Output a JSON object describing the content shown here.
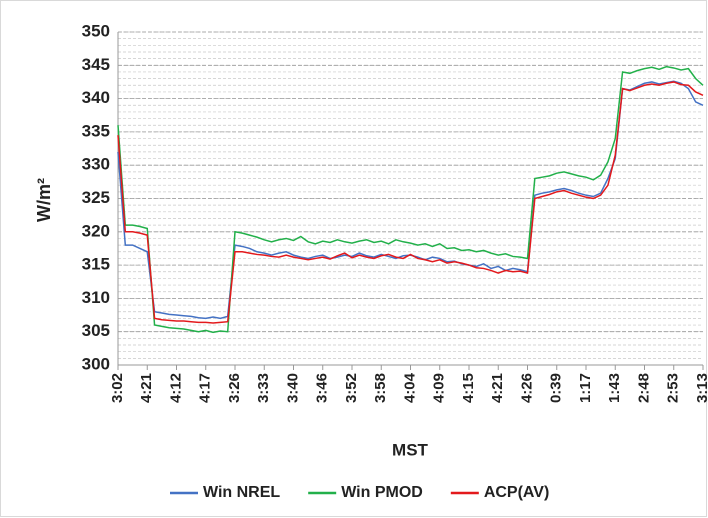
{
  "chart_data": {
    "type": "line",
    "x_label": "MST",
    "y_label": "W/m²",
    "categories": [
      "3:02",
      null,
      null,
      null,
      "4:21",
      null,
      null,
      null,
      "4:12",
      null,
      null,
      null,
      "4:17",
      null,
      null,
      null,
      "3:26",
      null,
      null,
      null,
      "3:33",
      null,
      null,
      null,
      "3:40",
      null,
      null,
      null,
      "3:46",
      null,
      null,
      null,
      "3:52",
      null,
      null,
      null,
      "3:58",
      null,
      null,
      null,
      "4:04",
      null,
      null,
      null,
      "4:09",
      null,
      null,
      null,
      "4:15",
      null,
      null,
      null,
      "4:21",
      null,
      null,
      null,
      "4:26",
      null,
      null,
      null,
      "0:39",
      null,
      null,
      null,
      "1:17",
      null,
      null,
      null,
      "1:43",
      null,
      null,
      null,
      "2:48",
      null,
      null,
      null,
      "2:53",
      null,
      null,
      null,
      "3:13"
    ],
    "series": [
      {
        "name": "Win NREL",
        "color": "#4472c4",
        "values": [
          332,
          318,
          318,
          317.5,
          317,
          308,
          307.8,
          307.6,
          307.5,
          307.4,
          307.3,
          307.1,
          307,
          307.2,
          307,
          307.3,
          318,
          317.8,
          317.5,
          317,
          316.8,
          316.5,
          316.8,
          317,
          316.5,
          316.2,
          316,
          316.3,
          316.5,
          316,
          316.2,
          316.5,
          316.3,
          316.8,
          316.4,
          316.2,
          316.6,
          316.3,
          316,
          316.4,
          316.5,
          316.2,
          315.8,
          316.2,
          316,
          315.5,
          315.6,
          315.2,
          315,
          314.8,
          315.2,
          314.5,
          314.8,
          314.2,
          314.5,
          314.3,
          314,
          325.5,
          325.8,
          326,
          326.3,
          326.5,
          326.2,
          325.8,
          325.5,
          325.3,
          325.8,
          328,
          331,
          341.5,
          341.3,
          341.8,
          342.3,
          342.5,
          342.2,
          342.4,
          342.6,
          342.3,
          341.5,
          339.5,
          339
        ]
      },
      {
        "name": "Win PMOD",
        "color": "#22b04a",
        "values": [
          336,
          321,
          321,
          320.8,
          320.5,
          306,
          305.8,
          305.6,
          305.5,
          305.4,
          305.2,
          305,
          305.2,
          304.9,
          305.1,
          305,
          320,
          319.8,
          319.5,
          319.2,
          318.8,
          318.5,
          318.8,
          319,
          318.7,
          319.3,
          318.5,
          318.2,
          318.6,
          318.4,
          318.8,
          318.5,
          318.3,
          318.6,
          318.8,
          318.4,
          318.6,
          318.2,
          318.8,
          318.5,
          318.3,
          318,
          318.2,
          317.8,
          318.2,
          317.5,
          317.6,
          317.2,
          317.3,
          317,
          317.2,
          316.8,
          316.5,
          316.7,
          316.3,
          316.2,
          316,
          328,
          328.2,
          328.4,
          328.8,
          329,
          328.7,
          328.4,
          328.2,
          327.8,
          328.5,
          330.5,
          334,
          344,
          343.8,
          344.2,
          344.5,
          344.7,
          344.4,
          344.8,
          344.6,
          344.3,
          344.5,
          343,
          342
        ]
      },
      {
        "name": "ACP(AV)",
        "color": "#e3191c",
        "values": [
          334.5,
          320,
          320,
          319.8,
          319.5,
          307,
          306.8,
          306.7,
          306.6,
          306.6,
          306.5,
          306.4,
          306.4,
          306.3,
          306.4,
          306.5,
          317,
          317,
          316.8,
          316.6,
          316.5,
          316.3,
          316.2,
          316.5,
          316.2,
          316,
          315.8,
          316,
          316.2,
          315.9,
          316.4,
          316.8,
          316.1,
          316.5,
          316.2,
          316,
          316.4,
          316.6,
          316.2,
          316,
          316.6,
          316,
          315.8,
          315.5,
          315.8,
          315.3,
          315.5,
          315.3,
          315,
          314.6,
          314.5,
          314.2,
          313.8,
          314.2,
          314,
          314.1,
          313.8,
          325,
          325.3,
          325.6,
          326,
          326.2,
          325.8,
          325.5,
          325.2,
          325,
          325.5,
          327,
          331.5,
          341.5,
          341.2,
          341.6,
          342,
          342.2,
          342,
          342.3,
          342.5,
          342.1,
          342,
          341,
          340.5
        ]
      }
    ],
    "ylim": [
      300,
      350
    ],
    "yticks": [
      300,
      305,
      310,
      315,
      320,
      325,
      330,
      335,
      340,
      345,
      350
    ],
    "grid": true,
    "minor_grid_step": 1,
    "legend": "bottom"
  }
}
